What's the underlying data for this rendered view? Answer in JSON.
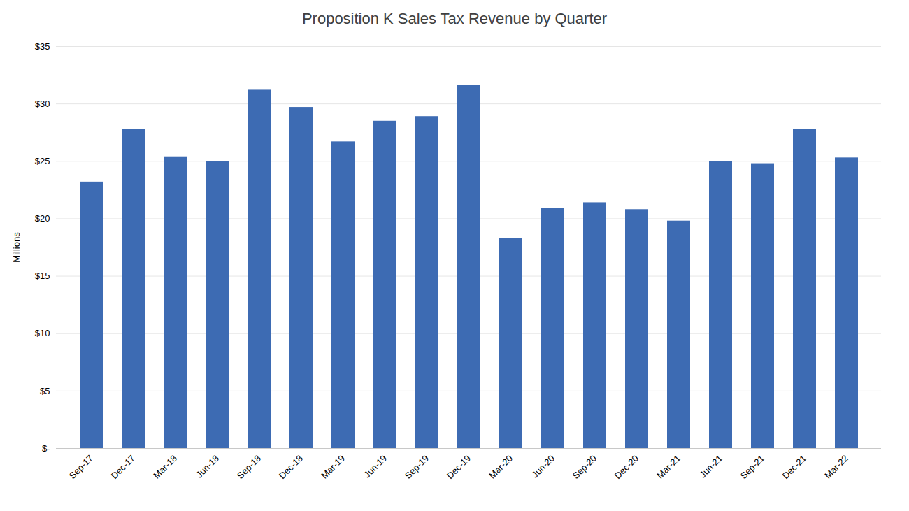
{
  "chart_data": {
    "type": "bar",
    "title": "Proposition K Sales Tax Revenue by Quarter",
    "ylabel": "Millions",
    "categories": [
      "Sep-17",
      "Dec-17",
      "Mar-18",
      "Jun-18",
      "Sep-18",
      "Dec-18",
      "Mar-19",
      "Jun-19",
      "Sep-19",
      "Dec-19",
      "Mar-20",
      "Jun-20",
      "Sep-20",
      "Dec-20",
      "Mar-21",
      "Jun-21",
      "Sep-21",
      "Dec-21",
      "Mar-22"
    ],
    "values": [
      23.2,
      27.8,
      25.4,
      25.0,
      31.2,
      29.7,
      26.7,
      28.5,
      28.9,
      31.6,
      18.3,
      20.9,
      21.4,
      20.8,
      19.8,
      25.0,
      24.8,
      27.8,
      25.3
    ],
    "color": "#3D6BB3",
    "ylim": [
      0,
      35
    ],
    "yticks": [
      {
        "value": 0,
        "label": "$-"
      },
      {
        "value": 5,
        "label": "$5"
      },
      {
        "value": 10,
        "label": "$10"
      },
      {
        "value": 15,
        "label": "$15"
      },
      {
        "value": 20,
        "label": "$20"
      },
      {
        "value": 25,
        "label": "$25"
      },
      {
        "value": 30,
        "label": "$30"
      },
      {
        "value": 35,
        "label": "$35"
      }
    ],
    "grid": true
  }
}
